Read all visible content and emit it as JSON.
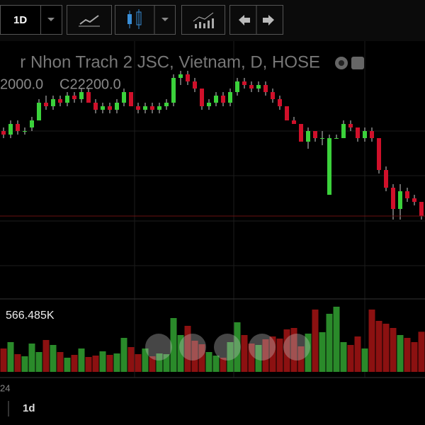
{
  "toolbar": {
    "interval": "1D"
  },
  "chart_data": {
    "type": "candlestick",
    "title": "r Nhon Trach 2 JSC, Vietnam, D, HOSE",
    "ohlc_labels": [
      "2000.0",
      "C22200.0"
    ],
    "ylim": [
      19200,
      22800
    ],
    "up_color": "#3bd23b",
    "down_color": "#d0102a",
    "candles": {
      "open": [
        21550,
        21500,
        21650,
        21550,
        21600,
        21700,
        21950,
        21900,
        22000,
        21950,
        22050,
        22000,
        22100,
        21950,
        21850,
        21900,
        21850,
        21950,
        22100,
        21900,
        21850,
        21900,
        21850,
        21900,
        21950,
        22300,
        22350,
        22250,
        22150,
        21900,
        21950,
        22050,
        21950,
        22100,
        22250,
        22200,
        22150,
        22200,
        22100,
        22000,
        21900,
        21700,
        21650,
        21400,
        21550,
        21450,
        20650,
        21450,
        21450,
        21650,
        21600,
        21450,
        21550,
        21450,
        21000,
        20750,
        20450,
        20700,
        20600,
        20550
      ],
      "high": [
        21600,
        21700,
        21700,
        21600,
        21750,
        22000,
        22050,
        22050,
        22050,
        22100,
        22100,
        22150,
        22150,
        22000,
        21950,
        21950,
        22000,
        22150,
        22100,
        21950,
        21950,
        21950,
        21950,
        22000,
        22350,
        22400,
        22400,
        22300,
        22150,
        22000,
        22100,
        22100,
        22150,
        22300,
        22300,
        22250,
        22250,
        22250,
        22150,
        22050,
        21900,
        21750,
        21650,
        21600,
        21550,
        21550,
        21500,
        21500,
        21700,
        21700,
        21600,
        21600,
        21600,
        21450,
        21050,
        20800,
        20800,
        20750,
        20650,
        20550
      ],
      "low": [
        21450,
        21450,
        21500,
        21500,
        21550,
        21700,
        21850,
        21850,
        21900,
        21900,
        21950,
        21950,
        21950,
        21800,
        21800,
        21800,
        21800,
        21900,
        21900,
        21800,
        21800,
        21800,
        21800,
        21850,
        21900,
        22200,
        22200,
        22100,
        21850,
        21850,
        21900,
        21900,
        21900,
        22050,
        22150,
        22100,
        22100,
        22050,
        21950,
        21850,
        21700,
        21650,
        21400,
        21300,
        21400,
        21350,
        20650,
        21450,
        21450,
        21550,
        21400,
        21400,
        21400,
        20950,
        20700,
        20300,
        20300,
        20550,
        20500,
        20300
      ],
      "close": [
        21500,
        21650,
        21550,
        21550,
        21700,
        21950,
        21900,
        22000,
        21950,
        22050,
        22000,
        22100,
        21950,
        21850,
        21900,
        21850,
        21950,
        22100,
        21900,
        21850,
        21900,
        21850,
        21900,
        21950,
        22300,
        22350,
        22250,
        22150,
        21900,
        21950,
        22050,
        21950,
        22100,
        22250,
        22200,
        22150,
        22200,
        22100,
        22000,
        21900,
        21700,
        21650,
        21400,
        21550,
        21450,
        21450,
        21450,
        21450,
        21650,
        21600,
        21450,
        21550,
        21450,
        21000,
        20750,
        20450,
        20700,
        20600,
        20550,
        20350
      ]
    },
    "volume": {
      "label": "566.485K",
      "ylim": [
        0,
        1000
      ],
      "up_color": "#2a8a2a",
      "down_color": "#8c1111",
      "values": [
        330,
        420,
        250,
        220,
        400,
        280,
        450,
        380,
        280,
        200,
        240,
        330,
        210,
        230,
        290,
        240,
        260,
        480,
        350,
        250,
        330,
        220,
        260,
        250,
        760,
        520,
        650,
        440,
        390,
        280,
        230,
        200,
        420,
        700,
        520,
        400,
        380,
        460,
        500,
        470,
        600,
        620,
        360,
        540,
        880,
        560,
        820,
        920,
        420,
        380,
        500,
        330,
        880,
        720,
        680,
        620,
        520,
        480,
        420,
        566.485
      ]
    }
  },
  "footer": {
    "x_label": "24",
    "interval": "1d"
  }
}
